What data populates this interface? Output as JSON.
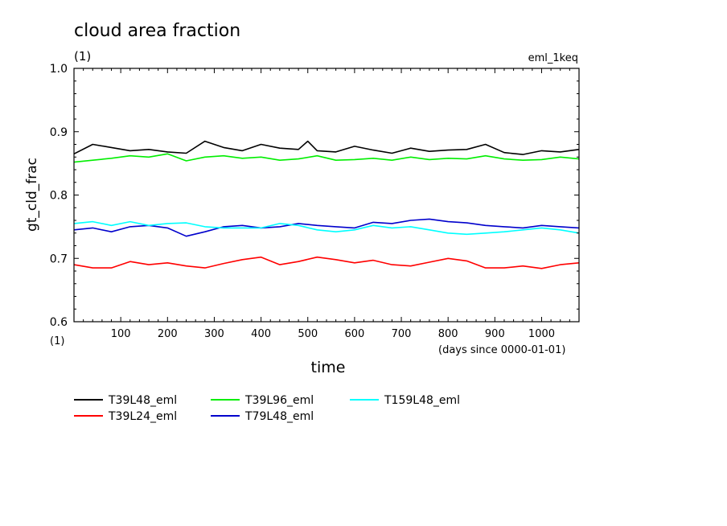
{
  "chart_data": {
    "type": "line",
    "title": "cloud area fraction",
    "title_unit": "(1)",
    "experiment_label": "eml_1keq",
    "ylabel": "gt_cld_frac",
    "ylabel_unit": "(1)",
    "xlabel": "time",
    "x_unit": "(days since 0000-01-01)",
    "xlim": [
      0,
      1080
    ],
    "ylim": [
      0.6,
      1.0
    ],
    "x_ticks": [
      100,
      200,
      300,
      400,
      500,
      600,
      700,
      800,
      900,
      1000
    ],
    "x_tick_labels": [
      "100",
      "200",
      "300",
      "400",
      "500",
      "600",
      "700",
      "800",
      "900",
      "1000"
    ],
    "y_ticks": [
      0.6,
      0.7,
      0.8,
      0.9,
      1.0
    ],
    "y_tick_labels": [
      "0.6",
      "0.7",
      "0.8",
      "0.9",
      "1.0"
    ],
    "grid": false,
    "legend_position": "bottom-left",
    "series": [
      {
        "name": "T39L48_eml",
        "color": "#000000",
        "x": [
          0,
          40,
          80,
          120,
          160,
          200,
          240,
          280,
          320,
          360,
          400,
          440,
          480,
          500,
          520,
          560,
          600,
          640,
          680,
          720,
          760,
          800,
          840,
          880,
          920,
          960,
          1000,
          1040,
          1080
        ],
        "values": [
          0.865,
          0.88,
          0.875,
          0.87,
          0.872,
          0.868,
          0.866,
          0.885,
          0.875,
          0.87,
          0.88,
          0.874,
          0.872,
          0.885,
          0.87,
          0.868,
          0.877,
          0.871,
          0.866,
          0.874,
          0.869,
          0.871,
          0.872,
          0.88,
          0.867,
          0.864,
          0.87,
          0.868,
          0.872
        ]
      },
      {
        "name": "T39L24_eml",
        "color": "#ff0000",
        "x": [
          0,
          40,
          80,
          120,
          160,
          200,
          240,
          280,
          320,
          360,
          400,
          440,
          480,
          520,
          560,
          600,
          640,
          680,
          720,
          760,
          800,
          840,
          880,
          920,
          960,
          1000,
          1040,
          1080
        ],
        "values": [
          0.69,
          0.685,
          0.685,
          0.695,
          0.69,
          0.693,
          0.688,
          0.685,
          0.692,
          0.698,
          0.702,
          0.69,
          0.695,
          0.702,
          0.698,
          0.693,
          0.697,
          0.69,
          0.688,
          0.694,
          0.7,
          0.696,
          0.685,
          0.685,
          0.688,
          0.684,
          0.69,
          0.693
        ]
      },
      {
        "name": "T39L96_eml",
        "color": "#00ee00",
        "x": [
          0,
          40,
          80,
          120,
          160,
          200,
          240,
          280,
          320,
          360,
          400,
          440,
          480,
          520,
          560,
          600,
          640,
          680,
          720,
          760,
          800,
          840,
          880,
          920,
          960,
          1000,
          1040,
          1080
        ],
        "values": [
          0.852,
          0.855,
          0.858,
          0.862,
          0.86,
          0.865,
          0.854,
          0.86,
          0.862,
          0.858,
          0.86,
          0.855,
          0.857,
          0.862,
          0.855,
          0.856,
          0.858,
          0.855,
          0.86,
          0.856,
          0.858,
          0.857,
          0.862,
          0.857,
          0.855,
          0.856,
          0.86,
          0.857
        ]
      },
      {
        "name": "T79L48_eml",
        "color": "#0000cc",
        "x": [
          0,
          40,
          80,
          120,
          160,
          200,
          240,
          280,
          320,
          360,
          400,
          440,
          480,
          520,
          560,
          600,
          640,
          680,
          720,
          760,
          800,
          840,
          880,
          920,
          960,
          1000,
          1040,
          1080
        ],
        "values": [
          0.745,
          0.748,
          0.742,
          0.75,
          0.752,
          0.748,
          0.735,
          0.742,
          0.75,
          0.752,
          0.748,
          0.75,
          0.755,
          0.752,
          0.75,
          0.748,
          0.757,
          0.755,
          0.76,
          0.762,
          0.758,
          0.756,
          0.752,
          0.75,
          0.748,
          0.752,
          0.75,
          0.748
        ]
      },
      {
        "name": "T159L48_eml",
        "color": "#00ffff",
        "x": [
          0,
          40,
          80,
          120,
          160,
          200,
          240,
          280,
          320,
          360,
          400,
          440,
          480,
          520,
          560,
          600,
          640,
          680,
          720,
          760,
          800,
          840,
          880,
          920,
          960,
          1000,
          1040,
          1080
        ],
        "values": [
          0.755,
          0.758,
          0.752,
          0.758,
          0.752,
          0.755,
          0.756,
          0.75,
          0.748,
          0.748,
          0.748,
          0.755,
          0.752,
          0.745,
          0.742,
          0.745,
          0.752,
          0.748,
          0.75,
          0.745,
          0.74,
          0.738,
          0.74,
          0.742,
          0.745,
          0.748,
          0.745,
          0.74
        ]
      }
    ]
  }
}
